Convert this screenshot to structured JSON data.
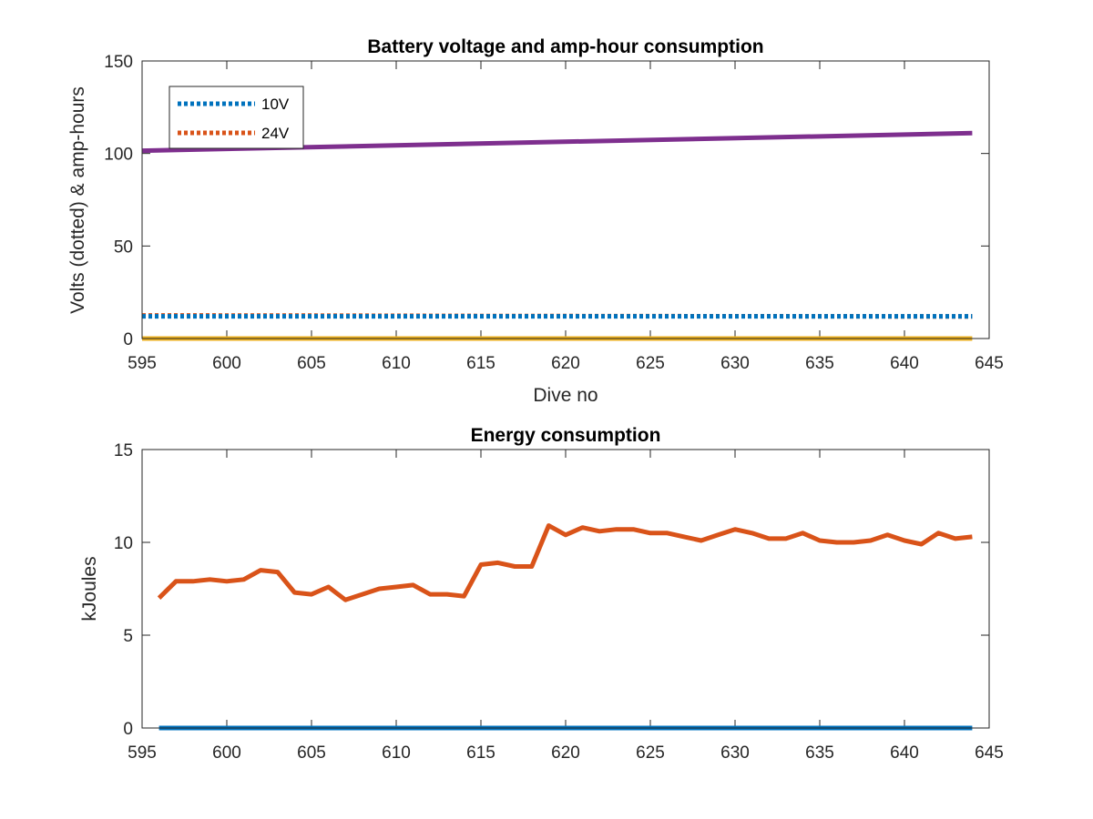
{
  "chart_data": [
    {
      "type": "line",
      "title": "Battery voltage and amp-hour consumption",
      "xlabel": "Dive no",
      "ylabel": "Volts (dotted) & amp-hours",
      "xlim": [
        595,
        645
      ],
      "ylim": [
        0,
        150
      ],
      "xticks": [
        "595",
        "600",
        "605",
        "610",
        "615",
        "620",
        "625",
        "630",
        "635",
        "640",
        "645"
      ],
      "yticks": [
        "0",
        "50",
        "100",
        "150"
      ],
      "grid": false,
      "legend": {
        "placement": "top-left"
      },
      "series": [
        {
          "name": "10V",
          "color": "#0072BD",
          "style": "dotted",
          "x": [
            595,
            605,
            615,
            625,
            635,
            644
          ],
          "y": [
            12,
            12,
            12,
            12,
            12,
            12
          ]
        },
        {
          "name": "24V",
          "color": "#D95319",
          "style": "dotted",
          "x": [
            595,
            605,
            615,
            625,
            635,
            644
          ],
          "y": [
            12.5,
            12.4,
            12.2,
            12.1,
            12.0,
            11.9
          ]
        },
        {
          "color": "#7E2F8E",
          "style": "solid",
          "x": [
            595,
            644
          ],
          "y": [
            101.5,
            111
          ]
        },
        {
          "color": "#EDB120",
          "style": "solid",
          "x": [
            595,
            644
          ],
          "y": [
            0,
            0
          ]
        }
      ]
    },
    {
      "type": "line",
      "title": "Energy consumption",
      "xlabel": "",
      "ylabel": "kJoules",
      "xlim": [
        595,
        645
      ],
      "ylim": [
        0,
        15
      ],
      "xticks": [
        "595",
        "600",
        "605",
        "610",
        "615",
        "620",
        "625",
        "630",
        "635",
        "640",
        "645"
      ],
      "yticks": [
        "0",
        "5",
        "10",
        "15"
      ],
      "grid": false,
      "series": [
        {
          "color": "#0072BD",
          "style": "solid",
          "x": [
            596,
            644
          ],
          "y": [
            0,
            0
          ]
        },
        {
          "color": "#D95319",
          "style": "solid",
          "x": [
            596,
            597,
            598,
            599,
            600,
            601,
            602,
            603,
            604,
            605,
            606,
            607,
            608,
            609,
            610,
            611,
            612,
            613,
            614,
            615,
            616,
            617,
            618,
            619,
            620,
            621,
            622,
            623,
            624,
            625,
            626,
            627,
            628,
            629,
            630,
            631,
            632,
            633,
            634,
            635,
            636,
            637,
            638,
            639,
            640,
            641,
            642,
            643,
            644
          ],
          "y": [
            7.0,
            7.9,
            7.9,
            8.0,
            7.9,
            8.0,
            8.5,
            8.4,
            7.3,
            7.2,
            7.6,
            6.9,
            7.2,
            7.5,
            7.6,
            7.7,
            7.2,
            7.2,
            7.1,
            8.8,
            8.9,
            8.7,
            8.7,
            10.9,
            10.4,
            10.8,
            10.6,
            10.7,
            10.7,
            10.5,
            10.5,
            10.3,
            10.1,
            10.4,
            10.7,
            10.5,
            10.2,
            10.2,
            10.5,
            10.1,
            10.0,
            10.0,
            10.1,
            10.4,
            10.1,
            9.9,
            10.5,
            10.2,
            10.3
          ]
        }
      ]
    }
  ]
}
